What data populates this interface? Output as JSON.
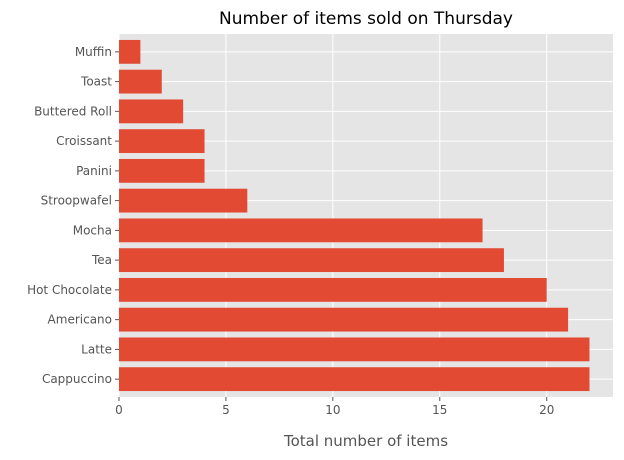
{
  "chart_data": {
    "type": "bar",
    "orientation": "horizontal",
    "title": "Number of items sold on Thursday",
    "xlabel": "Total number of items",
    "ylabel": "",
    "categories": [
      "Cappuccino",
      "Latte",
      "Americano",
      "Hot Chocolate",
      "Tea",
      "Mocha",
      "Stroopwafel",
      "Panini",
      "Croissant",
      "Buttered Roll",
      "Toast",
      "Muffin"
    ],
    "values": [
      22,
      22,
      21,
      20,
      18,
      17,
      6,
      4,
      4,
      3,
      2,
      1
    ],
    "xlim": [
      0,
      23.1
    ],
    "xticks": [
      0,
      5,
      10,
      15,
      20
    ],
    "grid": true,
    "style": "ggplot",
    "colors": {
      "bar": "#E24A33",
      "plot_background": "#E5E5E5",
      "grid": "#FFFFFF",
      "tick_text": "#555555"
    }
  }
}
